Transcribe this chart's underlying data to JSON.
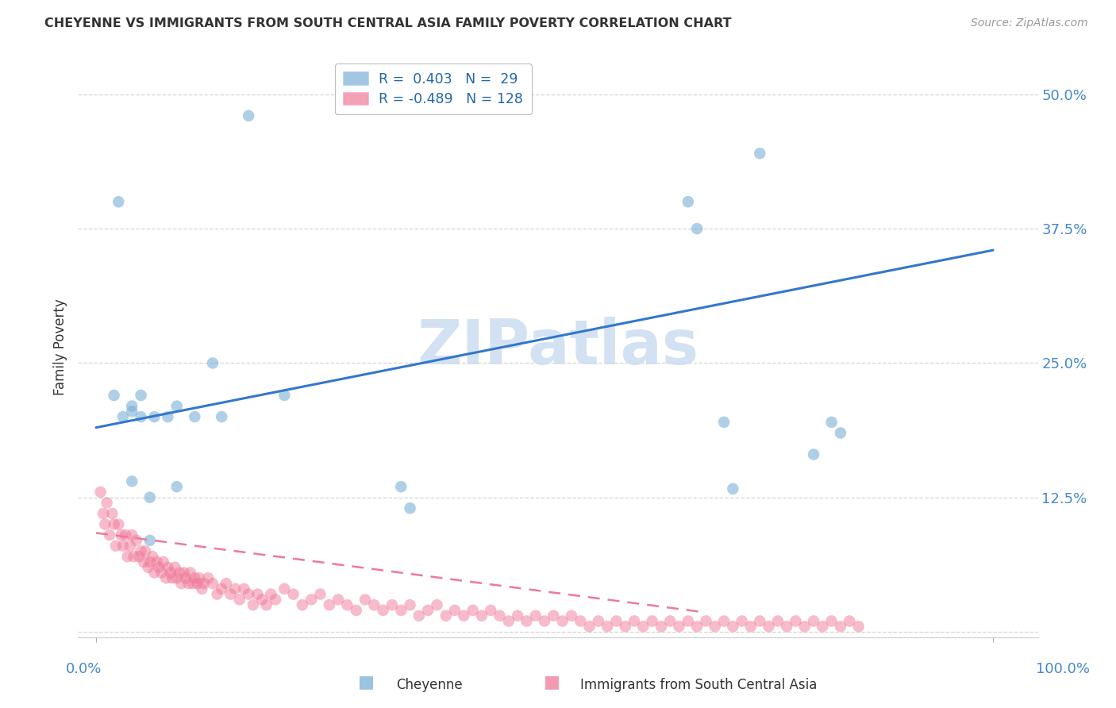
{
  "title": "CHEYENNE VS IMMIGRANTS FROM SOUTH CENTRAL ASIA FAMILY POVERTY CORRELATION CHART",
  "source": "Source: ZipAtlas.com",
  "ylabel": "Family Poverty",
  "ytick_vals": [
    0.0,
    0.125,
    0.25,
    0.375,
    0.5
  ],
  "ytick_labels": [
    "",
    "12.5%",
    "25.0%",
    "37.5%",
    "50.0%"
  ],
  "xtick_vals": [
    0.0,
    1.0
  ],
  "xtick_labels": [
    "0.0%",
    "100.0%"
  ],
  "xlim": [
    -0.02,
    1.05
  ],
  "ylim": [
    -0.005,
    0.535
  ],
  "background_color": "#ffffff",
  "blue_color": "#7ab0d8",
  "pink_color": "#f07898",
  "blue_edge_color": "#5588bb",
  "pink_edge_color": "#d05070",
  "blue_scatter_x": [
    0.17,
    0.025,
    0.02,
    0.03,
    0.04,
    0.04,
    0.05,
    0.05,
    0.065,
    0.08,
    0.13,
    0.14,
    0.09,
    0.11,
    0.21,
    0.34,
    0.35,
    0.66,
    0.67,
    0.7,
    0.71,
    0.74,
    0.82,
    0.83,
    0.8,
    0.04,
    0.06,
    0.06,
    0.09
  ],
  "blue_scatter_y": [
    0.48,
    0.4,
    0.22,
    0.2,
    0.21,
    0.205,
    0.2,
    0.22,
    0.2,
    0.2,
    0.25,
    0.2,
    0.21,
    0.2,
    0.22,
    0.135,
    0.115,
    0.4,
    0.375,
    0.195,
    0.133,
    0.445,
    0.195,
    0.185,
    0.165,
    0.14,
    0.125,
    0.085,
    0.135
  ],
  "pink_scatter_x": [
    0.005,
    0.008,
    0.01,
    0.012,
    0.015,
    0.018,
    0.02,
    0.022,
    0.025,
    0.028,
    0.03,
    0.033,
    0.035,
    0.038,
    0.04,
    0.042,
    0.045,
    0.048,
    0.05,
    0.053,
    0.055,
    0.058,
    0.06,
    0.063,
    0.065,
    0.068,
    0.07,
    0.073,
    0.075,
    0.078,
    0.08,
    0.083,
    0.085,
    0.088,
    0.09,
    0.093,
    0.095,
    0.098,
    0.1,
    0.103,
    0.105,
    0.108,
    0.11,
    0.113,
    0.115,
    0.118,
    0.12,
    0.125,
    0.13,
    0.135,
    0.14,
    0.145,
    0.15,
    0.155,
    0.16,
    0.165,
    0.17,
    0.175,
    0.18,
    0.185,
    0.19,
    0.195,
    0.2,
    0.21,
    0.22,
    0.23,
    0.24,
    0.25,
    0.26,
    0.27,
    0.28,
    0.29,
    0.3,
    0.31,
    0.32,
    0.33,
    0.34,
    0.35,
    0.36,
    0.37,
    0.38,
    0.39,
    0.4,
    0.41,
    0.42,
    0.43,
    0.44,
    0.45,
    0.46,
    0.47,
    0.48,
    0.49,
    0.5,
    0.51,
    0.52,
    0.53,
    0.54,
    0.55,
    0.56,
    0.57,
    0.58,
    0.59,
    0.6,
    0.61,
    0.62,
    0.63,
    0.64,
    0.65,
    0.66,
    0.67,
    0.68,
    0.69,
    0.7,
    0.71,
    0.72,
    0.73,
    0.74,
    0.75,
    0.76,
    0.77,
    0.78,
    0.79,
    0.8,
    0.81,
    0.82,
    0.83,
    0.84,
    0.85
  ],
  "pink_scatter_y": [
    0.13,
    0.11,
    0.1,
    0.12,
    0.09,
    0.11,
    0.1,
    0.08,
    0.1,
    0.09,
    0.08,
    0.09,
    0.07,
    0.08,
    0.09,
    0.07,
    0.085,
    0.07,
    0.075,
    0.065,
    0.075,
    0.06,
    0.065,
    0.07,
    0.055,
    0.065,
    0.06,
    0.055,
    0.065,
    0.05,
    0.06,
    0.055,
    0.05,
    0.06,
    0.05,
    0.055,
    0.045,
    0.055,
    0.05,
    0.045,
    0.055,
    0.045,
    0.05,
    0.045,
    0.05,
    0.04,
    0.045,
    0.05,
    0.045,
    0.035,
    0.04,
    0.045,
    0.035,
    0.04,
    0.03,
    0.04,
    0.035,
    0.025,
    0.035,
    0.03,
    0.025,
    0.035,
    0.03,
    0.04,
    0.035,
    0.025,
    0.03,
    0.035,
    0.025,
    0.03,
    0.025,
    0.02,
    0.03,
    0.025,
    0.02,
    0.025,
    0.02,
    0.025,
    0.015,
    0.02,
    0.025,
    0.015,
    0.02,
    0.015,
    0.02,
    0.015,
    0.02,
    0.015,
    0.01,
    0.015,
    0.01,
    0.015,
    0.01,
    0.015,
    0.01,
    0.015,
    0.01,
    0.005,
    0.01,
    0.005,
    0.01,
    0.005,
    0.01,
    0.005,
    0.01,
    0.005,
    0.01,
    0.005,
    0.01,
    0.005,
    0.01,
    0.005,
    0.01,
    0.005,
    0.01,
    0.005,
    0.01,
    0.005,
    0.01,
    0.005,
    0.01,
    0.005,
    0.01,
    0.005,
    0.01,
    0.005,
    0.01,
    0.005
  ],
  "blue_line_x0": 0.0,
  "blue_line_x1": 1.0,
  "blue_line_y0": 0.19,
  "blue_line_y1": 0.355,
  "pink_line_x0": 0.0,
  "pink_line_x1": 0.68,
  "pink_line_y0": 0.092,
  "pink_line_y1": 0.018,
  "legend_blue_r": "0.403",
  "legend_blue_n": "29",
  "legend_pink_r": "-0.489",
  "legend_pink_n": "128",
  "tick_color": "#4488cc",
  "grid_color": "#cccccc",
  "title_color": "#333333",
  "source_color": "#999999",
  "watermark_color": "#ccddf0",
  "ylabel_color": "#333333",
  "legend_text_color": "#2266aa"
}
